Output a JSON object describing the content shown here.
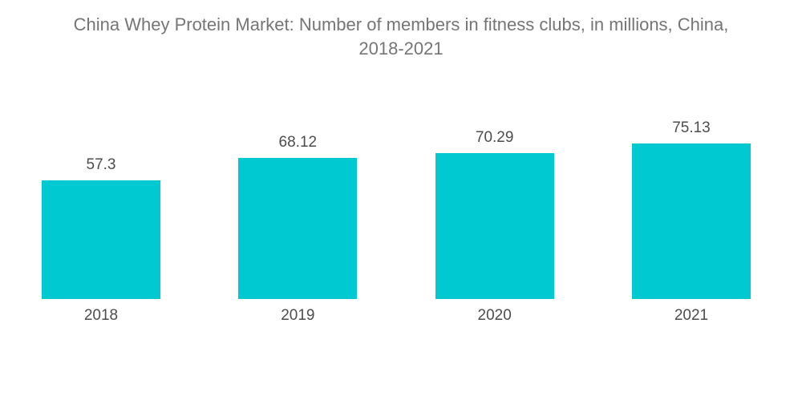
{
  "chart_data": {
    "type": "bar",
    "title": "China Whey Protein Market: Number of members in fitness clubs, in millions, China, 2018-2021",
    "title_lines": [
      "China Whey Protein Market: Number of members in fitness clubs, in millions, China,",
      "2018-2021"
    ],
    "categories": [
      "2018",
      "2019",
      "2020",
      "2021"
    ],
    "values": [
      57.3,
      68.12,
      70.29,
      75.13
    ],
    "xlabel": "",
    "ylabel": "",
    "ylim": [
      0,
      75.13
    ],
    "grid": false,
    "legend": "none",
    "axes_visible": false,
    "colors": {
      "bar": "#00C9D2",
      "label_text": "#4d4d4d",
      "title_text": "#757575",
      "background": "#ffffff"
    }
  }
}
